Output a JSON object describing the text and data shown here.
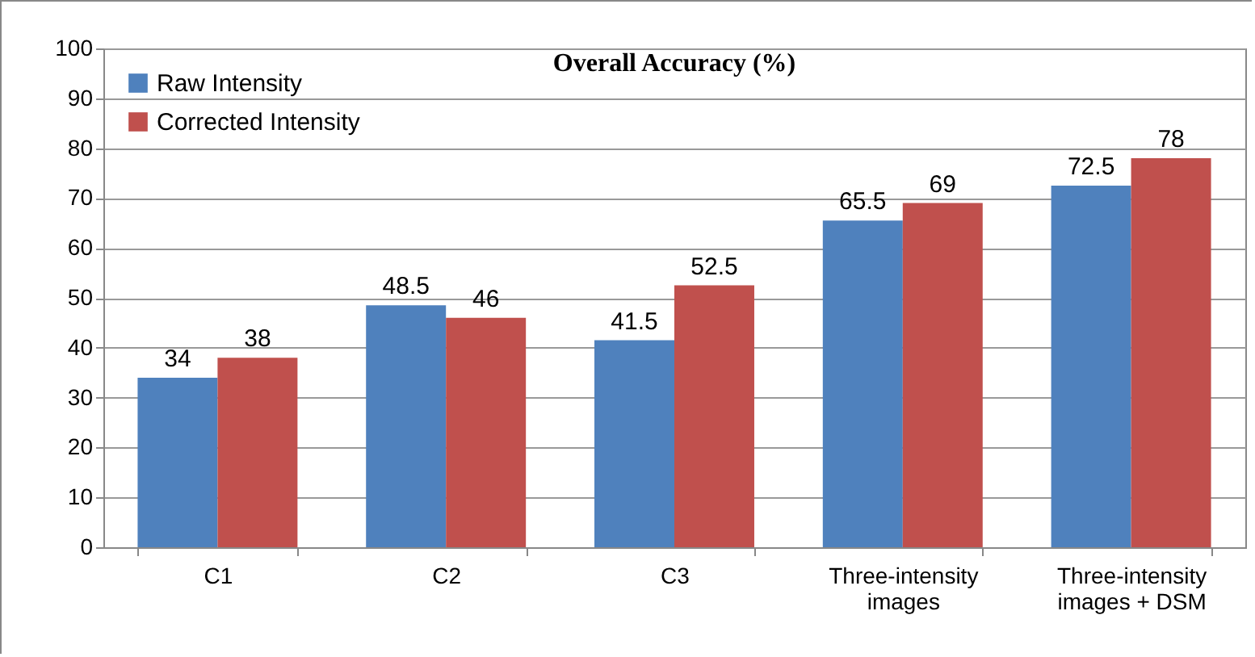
{
  "chart_data": {
    "type": "bar",
    "title": "Overall Accuracy (%)",
    "categories": [
      "C1",
      "C2",
      "C3",
      "Three-intensity images",
      "Three-intensity images + DSM"
    ],
    "series": [
      {
        "name": "Raw Intensity",
        "color": "#4f81bd",
        "values": [
          34,
          48.5,
          41.5,
          65.5,
          72.5
        ]
      },
      {
        "name": "Corrected Intensity",
        "color": "#c0504d",
        "values": [
          38,
          46,
          52.5,
          69,
          78
        ]
      }
    ],
    "ylim": [
      0,
      100
    ],
    "yticks": [
      0,
      10,
      20,
      30,
      40,
      50,
      60,
      70,
      80,
      90,
      100
    ],
    "grid": "y",
    "legend": "top left",
    "data_labels": true
  }
}
